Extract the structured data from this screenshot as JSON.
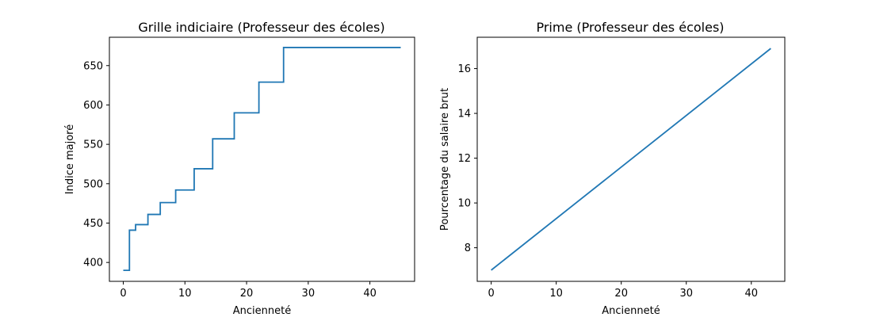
{
  "chart_data": [
    {
      "type": "line",
      "step": "post",
      "title": "Grille indiciaire (Professeur des écoles)",
      "xlabel": "Ancienneté",
      "ylabel": "Indice majoré",
      "xlim": [
        -2.25,
        47.25
      ],
      "ylim": [
        376,
        686
      ],
      "xticks": [
        0,
        10,
        20,
        30,
        40
      ],
      "yticks": [
        400,
        450,
        500,
        550,
        600,
        650
      ],
      "grid": false,
      "color": "#1f77b4",
      "series": [
        {
          "x": [
            0,
            1,
            2,
            4,
            6,
            8.5,
            11.5,
            14.5,
            18,
            22,
            26,
            45
          ],
          "y": [
            390,
            441,
            448,
            461,
            476,
            492,
            519,
            557,
            590,
            629,
            673,
            673
          ]
        }
      ]
    },
    {
      "type": "line",
      "title": "Prime (Professeur des écoles)",
      "xlabel": "Ancienneté",
      "ylabel": "Pourcentage du salaire brut",
      "xlim": [
        -2.15,
        45.15
      ],
      "ylim": [
        6.5,
        17.4
      ],
      "xticks": [
        0,
        10,
        20,
        30,
        40
      ],
      "yticks": [
        8,
        10,
        12,
        14,
        16
      ],
      "grid": false,
      "color": "#1f77b4",
      "series": [
        {
          "x": [
            0,
            43
          ],
          "y": [
            7.0,
            16.9
          ]
        }
      ]
    }
  ]
}
